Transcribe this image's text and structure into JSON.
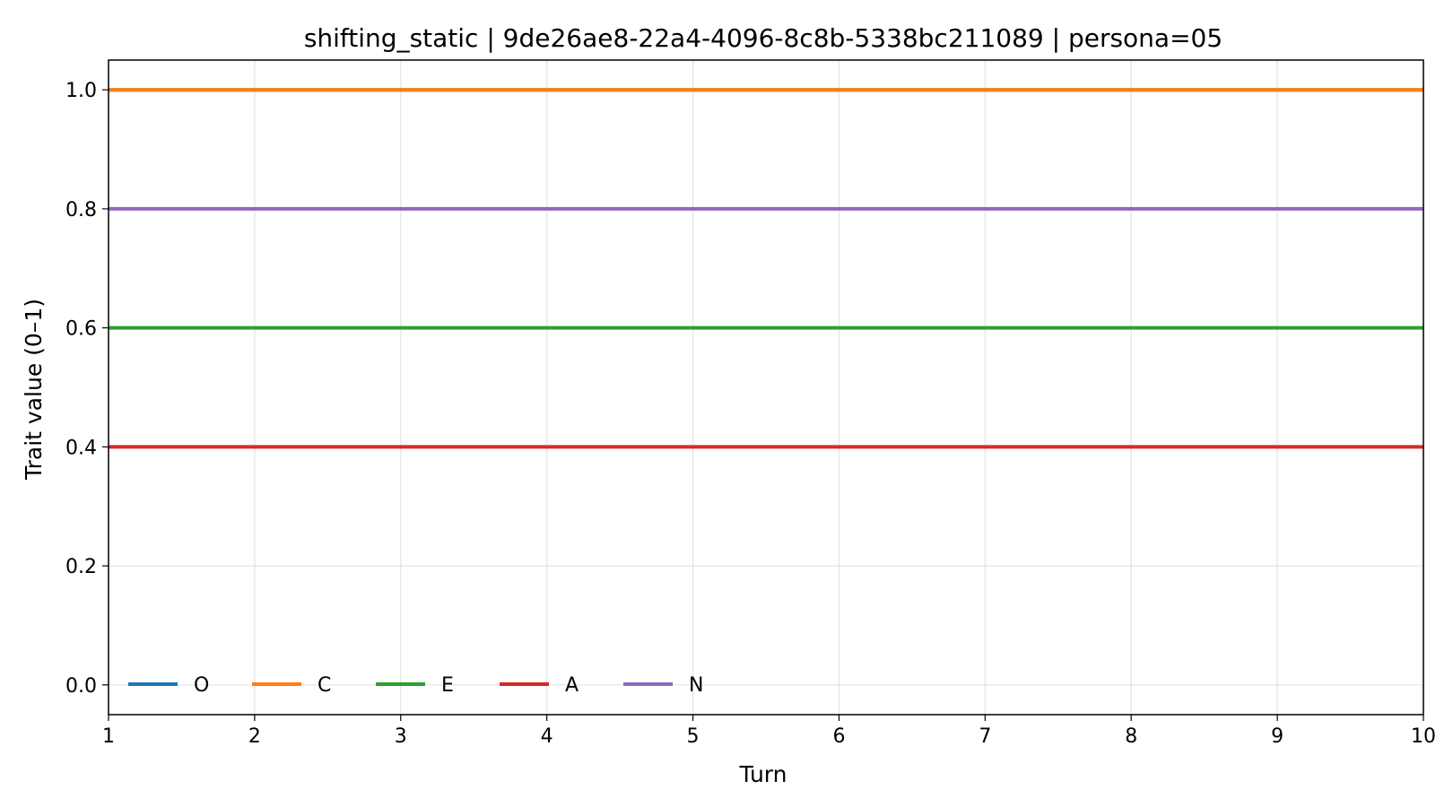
{
  "chart_data": {
    "type": "line",
    "title": "shifting_static | 9de26ae8-22a4-4096-8c8b-5338bc211089 | persona=05",
    "xlabel": "Turn",
    "ylabel": "Trait value (0–1)",
    "x": [
      1,
      2,
      3,
      4,
      5,
      6,
      7,
      8,
      9,
      10
    ],
    "xlim": [
      1,
      10
    ],
    "ylim": [
      -0.05,
      1.05
    ],
    "xticks": [
      "1",
      "2",
      "3",
      "4",
      "5",
      "6",
      "7",
      "8",
      "9",
      "10"
    ],
    "yticks": [
      "0.0",
      "0.2",
      "0.4",
      "0.6",
      "0.8",
      "1.0"
    ],
    "grid": true,
    "legend_position": "lower-left",
    "series": [
      {
        "name": "O",
        "color": "#1f77b4",
        "values": [
          1.0,
          1.0,
          1.0,
          1.0,
          1.0,
          1.0,
          1.0,
          1.0,
          1.0,
          1.0
        ]
      },
      {
        "name": "C",
        "color": "#ff7f0e",
        "values": [
          1.0,
          1.0,
          1.0,
          1.0,
          1.0,
          1.0,
          1.0,
          1.0,
          1.0,
          1.0
        ]
      },
      {
        "name": "E",
        "color": "#2ca02c",
        "values": [
          0.6,
          0.6,
          0.6,
          0.6,
          0.6,
          0.6,
          0.6,
          0.6,
          0.6,
          0.6
        ]
      },
      {
        "name": "A",
        "color": "#d62728",
        "values": [
          0.4,
          0.4,
          0.4,
          0.4,
          0.4,
          0.4,
          0.4,
          0.4,
          0.4,
          0.4
        ]
      },
      {
        "name": "N",
        "color": "#9467bd",
        "values": [
          0.8,
          0.8,
          0.8,
          0.8,
          0.8,
          0.8,
          0.8,
          0.8,
          0.8,
          0.8
        ]
      }
    ]
  }
}
